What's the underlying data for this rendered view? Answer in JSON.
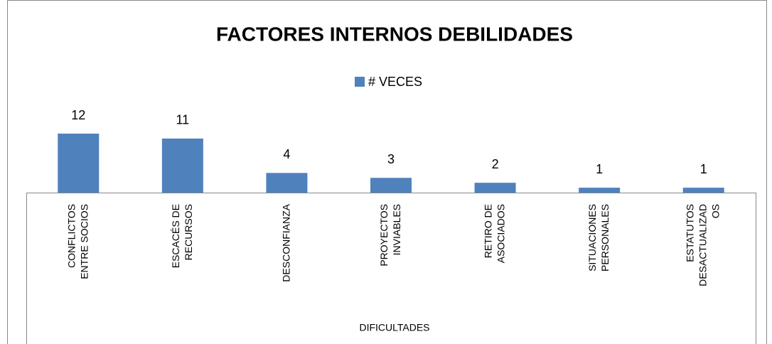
{
  "chart_data": {
    "type": "bar",
    "title": "FACTORES INTERNOS DEBILIDADES",
    "x_label": "DIFICULTADES",
    "categories": [
      "CONFLICTOS ENTRE SOCIOS",
      "ESCACÉS DE RECURSOS",
      "DESCONFIANZA",
      "PROYECTOS INVIABLES",
      "RETIRO DE ASOCIADOS",
      "SITUACIONES PERSONALES",
      "ESTATUTOS DESACTUALIZADOS"
    ],
    "series": [
      {
        "name": "# VECES",
        "color": "#4f81bd",
        "values": [
          12,
          11,
          4,
          3,
          2,
          1,
          1
        ]
      }
    ],
    "legend": "top"
  }
}
